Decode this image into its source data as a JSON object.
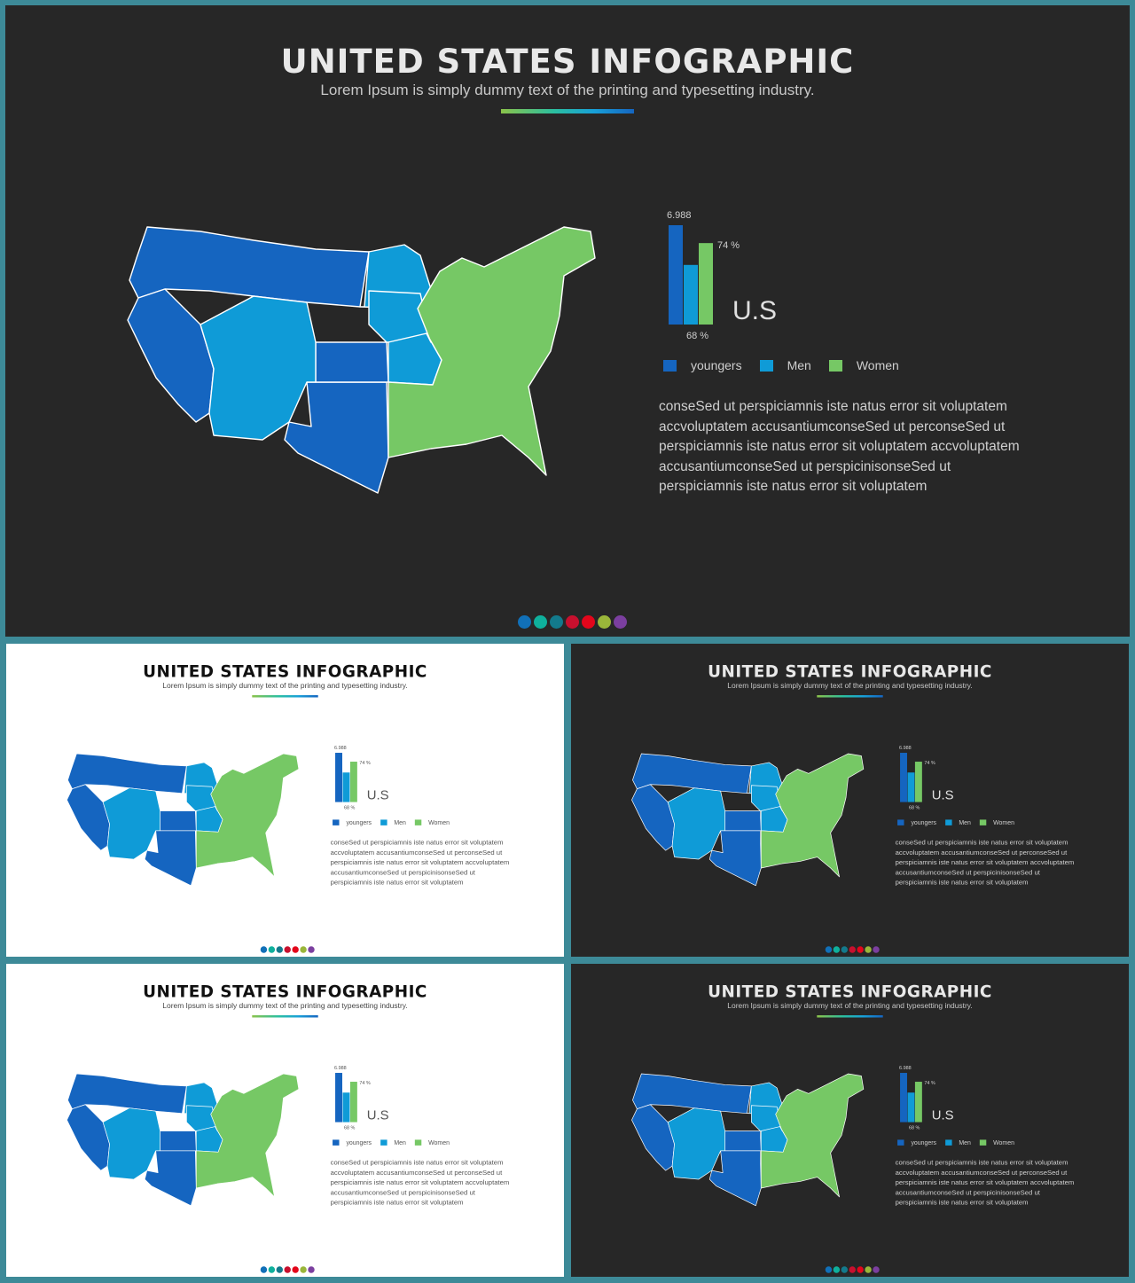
{
  "title": "UNITED STATES INFOGRAPHIC",
  "subtitle": "Lorem Ipsum is simply dummy text of the printing and typesetting industry.",
  "chart_data": {
    "type": "bar",
    "series": [
      {
        "name": "youngers",
        "label": "6.988",
        "value": 1.0
      },
      {
        "name": "Men",
        "label": "68 %",
        "value": 0.6
      },
      {
        "name": "Women",
        "label": "74 %",
        "value": 0.82
      }
    ]
  },
  "chart_title": "U.S",
  "legend": [
    "youngers",
    "Men",
    "Women"
  ],
  "body": "conseSed ut perspiciamnis iste natus  error sit voluptatem accvoluptatem accusantiumconseSed  ut perconseSed ut perspiciamnis iste natus  error sit voluptatem accvoluptatem accusantiumconseSed  ut perspicinisonseSed ut perspiciamnis iste natus  error sit voluptatem",
  "colors": {
    "youngers": "#1565c0",
    "men": "#0f9bd7",
    "women": "#76c865",
    "dark_bg": "#272727",
    "light_bg": "#ffffff",
    "frame": "#3d8a98"
  },
  "dots": [
    "#1170b8",
    "#0fb09c",
    "#137a8c",
    "#c8102e",
    "#e3061b",
    "#9ab63a",
    "#7b3f9f"
  ]
}
